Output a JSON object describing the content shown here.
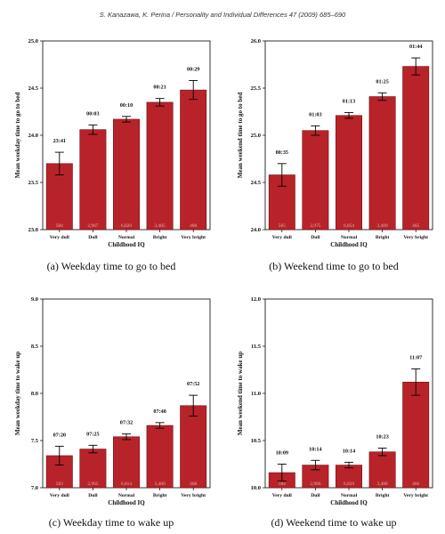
{
  "running_head": "S. Kanazawa, K. Perina / Personality and Individual Differences 47 (2009) 685–690",
  "colors": {
    "bar": "#b8232a",
    "bar_edge": "#6e0e12",
    "errorbar": "#000000"
  },
  "chart_data": [
    {
      "type": "bar",
      "caption": "(a) Weekday time to go to bed",
      "title": "",
      "ylabel": "Mean weekday time to go to bed",
      "xlabel": "Childhood IQ",
      "categories": [
        "Very dull",
        "Dull",
        "Normal",
        "Bright",
        "Very bright"
      ],
      "ylim": [
        23.0,
        25.0
      ],
      "yticks": [
        23.0,
        23.5,
        24.0,
        24.5,
        25.0
      ],
      "values": [
        23.7,
        24.06,
        24.17,
        24.35,
        24.48
      ],
      "errors": [
        0.12,
        0.05,
        0.03,
        0.04,
        0.1
      ],
      "data_labels": [
        "23:41",
        "00:03",
        "00:10",
        "00:21",
        "00:29"
      ],
      "n_labels": [
        "584",
        "2,967",
        "6,820",
        "3,485",
        "468"
      ]
    },
    {
      "type": "bar",
      "caption": "(b) Weekend time to go to bed",
      "title": "",
      "ylabel": "Mean weekend time to go to bed",
      "xlabel": "Childhood IQ",
      "categories": [
        "Very dull",
        "Dull",
        "Normal",
        "Bright",
        "Very bright"
      ],
      "ylim": [
        24.0,
        26.0
      ],
      "yticks": [
        24.0,
        24.5,
        25.0,
        25.5,
        26.0
      ],
      "values": [
        24.58,
        25.05,
        25.21,
        25.41,
        25.73
      ],
      "errors": [
        0.12,
        0.05,
        0.03,
        0.04,
        0.09
      ],
      "data_labels": [
        "00:35",
        "01:03",
        "01:13",
        "01:25",
        "01:44"
      ],
      "n_labels": [
        "585",
        "2,975",
        "6,854",
        "3,489",
        "465"
      ]
    },
    {
      "type": "bar",
      "caption": "(c) Weekday time to wake up",
      "title": "",
      "ylabel": "Mean weekday time to wake up",
      "xlabel": "Childhood IQ",
      "categories": [
        "Very dull",
        "Dull",
        "Normal",
        "Bright",
        "Very bright"
      ],
      "ylim": [
        7.0,
        9.0
      ],
      "yticks": [
        7.0,
        7.5,
        8.0,
        8.5,
        9.0
      ],
      "values": [
        7.34,
        7.41,
        7.54,
        7.66,
        7.87
      ],
      "errors": [
        0.1,
        0.04,
        0.03,
        0.03,
        0.11
      ],
      "data_labels": [
        "07:20",
        "07:25",
        "07:32",
        "07:40",
        "07:52"
      ],
      "n_labels": [
        "583",
        "2,965",
        "6,814",
        "3,480",
        "468"
      ]
    },
    {
      "type": "bar",
      "caption": "(d) Weekend time to wake up",
      "title": "",
      "ylabel": "Mean weekend time to wake up",
      "xlabel": "Childhood IQ",
      "categories": [
        "Very dull",
        "Dull",
        "Normal",
        "Bright",
        "Very bright"
      ],
      "ylim": [
        10.0,
        12.0
      ],
      "yticks": [
        10.0,
        10.5,
        11.0,
        11.5,
        12.0
      ],
      "values": [
        10.16,
        10.24,
        10.24,
        10.38,
        11.12
      ],
      "errors": [
        0.09,
        0.05,
        0.03,
        0.04,
        0.14
      ],
      "data_labels": [
        "10:09",
        "10:14",
        "10:14",
        "10:23",
        "11:07"
      ],
      "n_labels": [
        "584",
        "2,986",
        "6,850",
        "3,488",
        "466"
      ]
    }
  ]
}
